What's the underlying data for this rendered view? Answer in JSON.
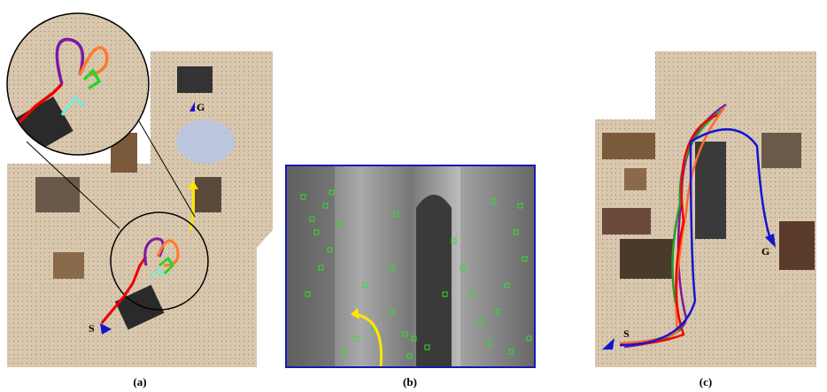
{
  "panels": [
    {
      "caption": "(a)",
      "start_label": "S",
      "goal_label": "G"
    },
    {
      "caption": "(b)"
    },
    {
      "caption": "(c)",
      "start_label": "S",
      "goal_label": "G"
    }
  ]
}
